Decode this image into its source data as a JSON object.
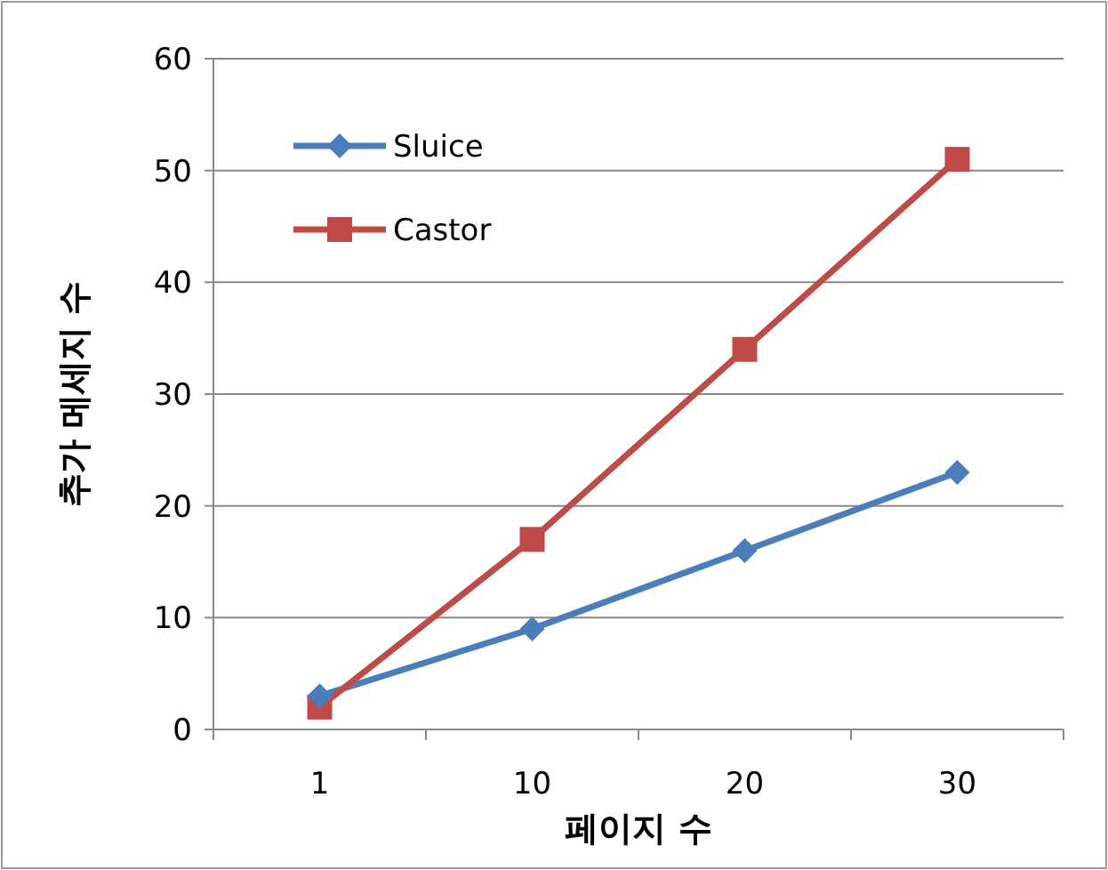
{
  "chart_data": {
    "type": "line",
    "xlabel": "페이지 수",
    "ylabel": "추가 메세지 수",
    "categories": [
      "1",
      "10",
      "20",
      "30"
    ],
    "series": [
      {
        "name": "Sluice",
        "color": "#4a7ebb",
        "marker": "diamond",
        "values": [
          3,
          9,
          16,
          23
        ]
      },
      {
        "name": "Castor",
        "color": "#be4b48",
        "marker": "square",
        "values": [
          2,
          17,
          34,
          51
        ]
      }
    ],
    "ylim": [
      0,
      60
    ],
    "yticks": [
      0,
      10,
      20,
      30,
      40,
      50,
      60
    ],
    "grid": "y",
    "legend": "top left",
    "line_style": "solid"
  }
}
